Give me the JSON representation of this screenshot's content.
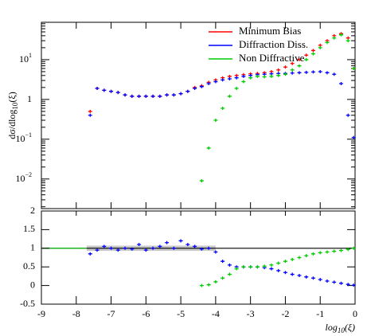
{
  "chart_data": [
    {
      "type": "scatter",
      "log_scale": true,
      "legend": "top-right",
      "ylabel": {
        "main": "dσ/dlog",
        "sub": "10",
        "tail": "(ξ)"
      },
      "x": [
        -7.6,
        -7.4,
        -7.2,
        -7.0,
        -6.8,
        -6.6,
        -6.4,
        -6.2,
        -6.0,
        -5.8,
        -5.6,
        -5.4,
        -5.2,
        -5.0,
        -4.8,
        -4.6,
        -4.4,
        -4.2,
        -4.0,
        -3.8,
        -3.6,
        -3.4,
        -3.2,
        -3.0,
        -2.8,
        -2.6,
        -2.4,
        -2.2,
        -2.0,
        -1.8,
        -1.6,
        -1.4,
        -1.2,
        -1.0,
        -0.8,
        -0.6,
        -0.4,
        -0.2,
        -0.04
      ],
      "xlim": [
        -9,
        0
      ],
      "ylim": [
        0.0018,
        87
      ],
      "yticks": [
        {
          "value": 10,
          "label": "10",
          "sup": "1"
        },
        {
          "value": 1,
          "label": "1"
        },
        {
          "value": 0.1,
          "label": "10",
          "sup": "−1"
        },
        {
          "value": 0.01,
          "label": "10",
          "sup": "−2"
        }
      ],
      "series": [
        {
          "name": "Minimum Bias",
          "color": "#ff0000",
          "values": [
            0.5,
            1.9,
            1.7,
            1.6,
            1.5,
            1.3,
            1.2,
            1.2,
            1.2,
            1.2,
            1.2,
            1.3,
            1.3,
            1.4,
            1.6,
            2.0,
            2.2,
            2.7,
            3.1,
            3.5,
            3.8,
            4.0,
            4.2,
            4.4,
            4.5,
            4.7,
            5.0,
            5.5,
            6.5,
            8,
            10,
            13,
            17,
            23,
            30,
            40,
            45,
            35,
            6
          ]
        },
        {
          "name": "Diffraction Diss.",
          "color": "#0000ff",
          "values": [
            0.4,
            1.9,
            1.7,
            1.6,
            1.5,
            1.3,
            1.2,
            1.2,
            1.2,
            1.2,
            1.2,
            1.3,
            1.3,
            1.4,
            1.6,
            1.9,
            2.1,
            2.5,
            2.8,
            3.1,
            3.3,
            3.5,
            3.8,
            4.0,
            4.2,
            4.3,
            4.4,
            4.5,
            4.5,
            4.6,
            4.7,
            4.8,
            4.9,
            5.0,
            4.7,
            4.3,
            2.5,
            0.4,
            0.11
          ]
        },
        {
          "name": "Non Diffractive",
          "color": "#00cc00",
          "values": [
            null,
            null,
            null,
            null,
            null,
            null,
            null,
            null,
            null,
            null,
            null,
            null,
            null,
            null,
            null,
            null,
            0.009,
            0.06,
            0.3,
            0.6,
            1.2,
            1.9,
            2.8,
            3.5,
            3.8,
            3.7,
            3.8,
            4.0,
            4.3,
            5.5,
            7,
            10,
            14,
            20,
            27,
            35,
            42,
            30,
            6
          ]
        }
      ]
    },
    {
      "type": "ratio",
      "xlabel": {
        "main": "log",
        "sub": "10",
        "tail": "(ξ)"
      },
      "x": [
        -7.6,
        -7.4,
        -7.2,
        -7.0,
        -6.8,
        -6.6,
        -6.4,
        -6.2,
        -6.0,
        -5.8,
        -5.6,
        -5.4,
        -5.2,
        -5.0,
        -4.8,
        -4.6,
        -4.4,
        -4.2,
        -4.0,
        -3.8,
        -3.6,
        -3.4,
        -3.2,
        -3.0,
        -2.8,
        -2.6,
        -2.4,
        -2.2,
        -2.0,
        -1.8,
        -1.6,
        -1.4,
        -1.2,
        -1.0,
        -0.8,
        -0.6,
        -0.4,
        -0.2,
        -0.04
      ],
      "xlim": [
        -9,
        0
      ],
      "xticks": [
        -9,
        -8,
        -7,
        -6,
        -5,
        -4,
        -3,
        -2,
        -1,
        0
      ],
      "ylim": [
        -0.5,
        2
      ],
      "yticks": [
        -0.5,
        0,
        0.5,
        1,
        1.5,
        2
      ],
      "reference": 1,
      "band": {
        "xlim": [
          -7.7,
          -4.0
        ],
        "ylim": [
          0.93,
          1.07
        ]
      },
      "series": [
        {
          "name": "Diffraction Diss.",
          "color": "#0000ff",
          "values": [
            0.85,
            0.95,
            1.05,
            1.0,
            0.95,
            1.0,
            0.98,
            1.1,
            0.95,
            1.0,
            1.05,
            1.15,
            1.0,
            1.2,
            1.1,
            1.05,
            0.98,
            1.0,
            0.9,
            0.65,
            0.55,
            0.5,
            0.5,
            0.5,
            0.5,
            0.48,
            0.45,
            0.4,
            0.35,
            0.3,
            0.27,
            0.23,
            0.2,
            0.16,
            0.12,
            0.09,
            0.06,
            0.03,
            0.01
          ]
        },
        {
          "name": "Non Diffractive",
          "color": "#00cc00",
          "values": [
            null,
            null,
            null,
            null,
            null,
            null,
            null,
            null,
            null,
            null,
            null,
            null,
            null,
            null,
            null,
            null,
            0.0,
            0.02,
            0.1,
            0.2,
            0.3,
            0.45,
            0.5,
            0.5,
            0.5,
            0.52,
            0.55,
            0.6,
            0.65,
            0.7,
            0.75,
            0.8,
            0.85,
            0.88,
            0.9,
            0.92,
            0.94,
            0.97,
            1.0
          ]
        }
      ]
    }
  ]
}
